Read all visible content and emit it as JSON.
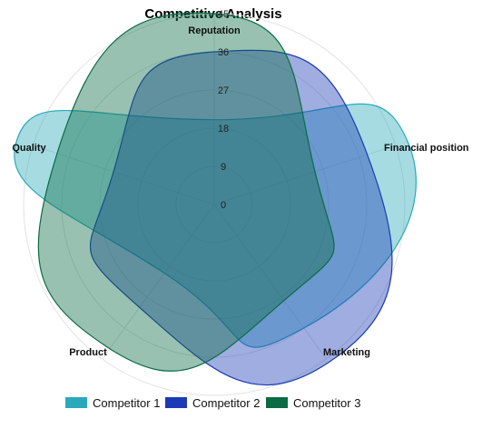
{
  "chart_data": {
    "type": "radar",
    "title": "Competitive Analysis",
    "axes": [
      "Reputation",
      "Financial position",
      "Marketing",
      "Product",
      "Quality"
    ],
    "rlim": [
      0,
      45
    ],
    "ticks": [
      "0",
      "9",
      "18",
      "27",
      "36",
      "45"
    ],
    "tick_values": [
      0,
      9,
      18,
      27,
      36,
      45
    ],
    "grid": true,
    "legend_position": "bottom",
    "series": [
      {
        "name": "Competitor 1",
        "values": [
          20,
          48,
          36,
          20,
          49
        ],
        "color": "#2aa9ba"
      },
      {
        "name": "Competitor 2",
        "values": [
          36,
          38,
          46,
          30,
          25
        ],
        "color": "#1a3bb5"
      },
      {
        "name": "Competitor 3",
        "values": [
          45,
          25,
          28,
          42,
          39
        ],
        "color": "#0b6b45"
      }
    ]
  }
}
